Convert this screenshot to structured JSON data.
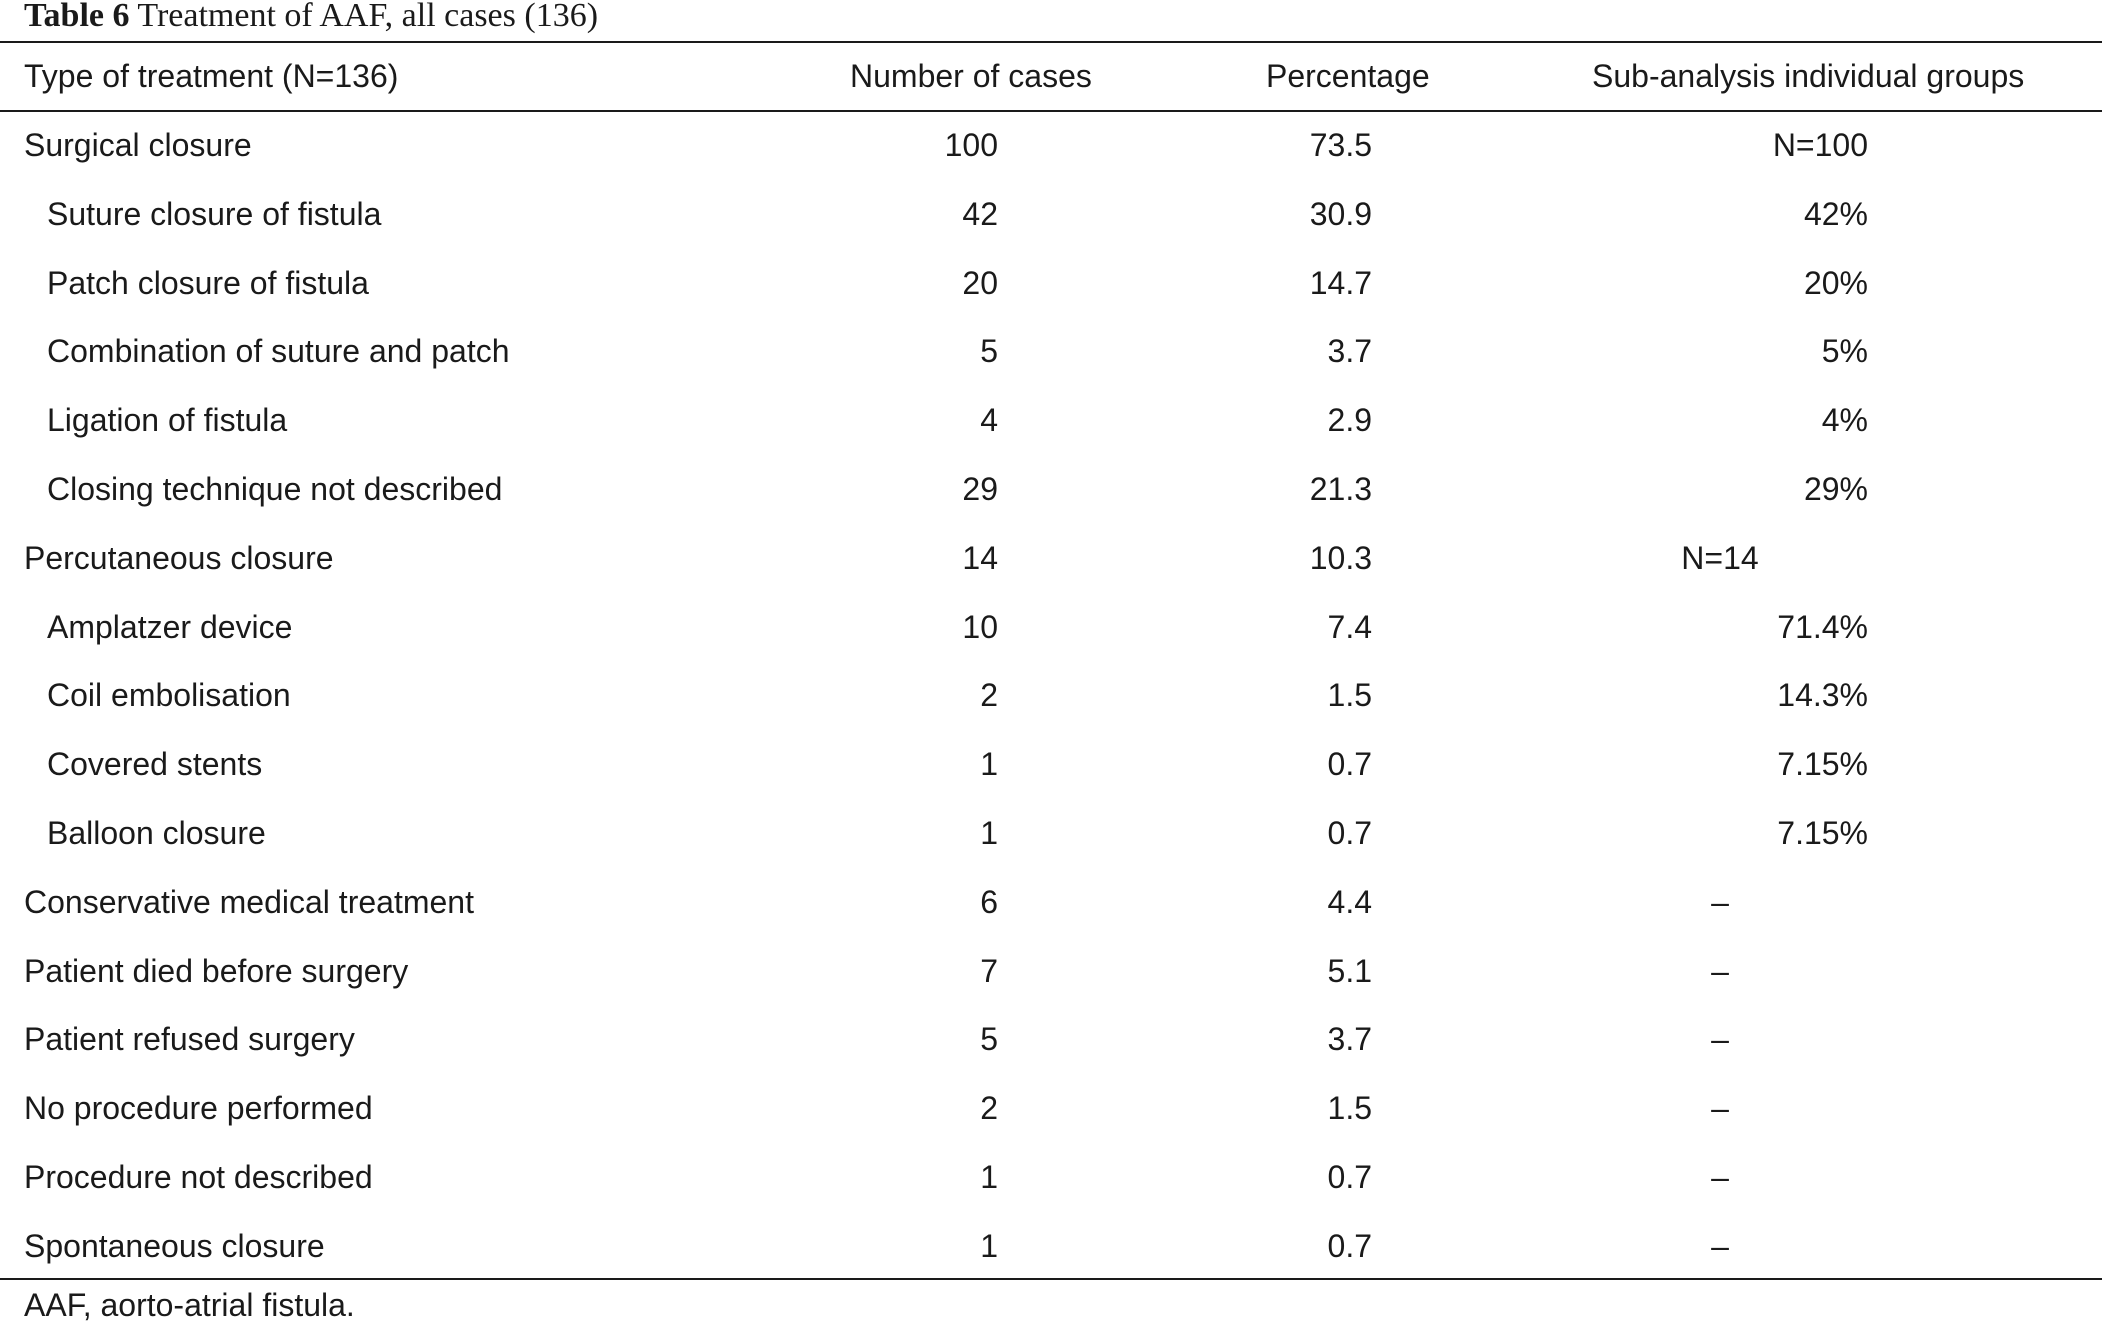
{
  "caption": {
    "label": "Table 6",
    "text": "Treatment of AAF, all cases (136)"
  },
  "table": {
    "headers": [
      "Type of treatment (N=136)",
      "Number of cases",
      "Percentage",
      "Sub-analysis individual groups"
    ],
    "rows": [
      {
        "type": "Surgical closure",
        "cases": "100",
        "pct": "73.5",
        "sub": "N=100",
        "indent": false,
        "sub_center": false
      },
      {
        "type": "Suture closure of fistula",
        "cases": "42",
        "pct": "30.9",
        "sub": "42%",
        "indent": true,
        "sub_center": false
      },
      {
        "type": "Patch closure of fistula",
        "cases": "20",
        "pct": "14.7",
        "sub": "20%",
        "indent": true,
        "sub_center": false
      },
      {
        "type": "Combination of suture and patch",
        "cases": "5",
        "pct": "3.7",
        "sub": "5%",
        "indent": true,
        "sub_center": false
      },
      {
        "type": "Ligation of fistula",
        "cases": "4",
        "pct": "2.9",
        "sub": "4%",
        "indent": true,
        "sub_center": false
      },
      {
        "type": "Closing technique not described",
        "cases": "29",
        "pct": "21.3",
        "sub": "29%",
        "indent": true,
        "sub_center": false
      },
      {
        "type": "Percutaneous closure",
        "cases": "14",
        "pct": "10.3",
        "sub": "N=14",
        "indent": false,
        "sub_center": true
      },
      {
        "type": "Amplatzer device",
        "cases": "10",
        "pct": "7.4",
        "sub": "71.4%",
        "indent": true,
        "sub_center": false
      },
      {
        "type": "Coil embolisation",
        "cases": "2",
        "pct": "1.5",
        "sub": "14.3%",
        "indent": true,
        "sub_center": false
      },
      {
        "type": "Covered stents",
        "cases": "1",
        "pct": "0.7",
        "sub": "7.15%",
        "indent": true,
        "sub_center": false
      },
      {
        "type": "Balloon closure",
        "cases": "1",
        "pct": "0.7",
        "sub": "7.15%",
        "indent": true,
        "sub_center": false
      },
      {
        "type": "Conservative medical treatment",
        "cases": "6",
        "pct": "4.4",
        "sub": "–",
        "indent": false,
        "sub_center": true
      },
      {
        "type": "Patient died before surgery",
        "cases": "7",
        "pct": "5.1",
        "sub": "–",
        "indent": false,
        "sub_center": true
      },
      {
        "type": "Patient refused surgery",
        "cases": "5",
        "pct": "3.7",
        "sub": "–",
        "indent": false,
        "sub_center": true
      },
      {
        "type": "No procedure performed",
        "cases": "2",
        "pct": "1.5",
        "sub": "–",
        "indent": false,
        "sub_center": true
      },
      {
        "type": "Procedure not described",
        "cases": "1",
        "pct": "0.7",
        "sub": "–",
        "indent": false,
        "sub_center": true
      },
      {
        "type": "Spontaneous closure",
        "cases": "1",
        "pct": "0.7",
        "sub": "–",
        "indent": false,
        "sub_center": true
      }
    ]
  },
  "footnote": "AAF, aorto-atrial fistula."
}
